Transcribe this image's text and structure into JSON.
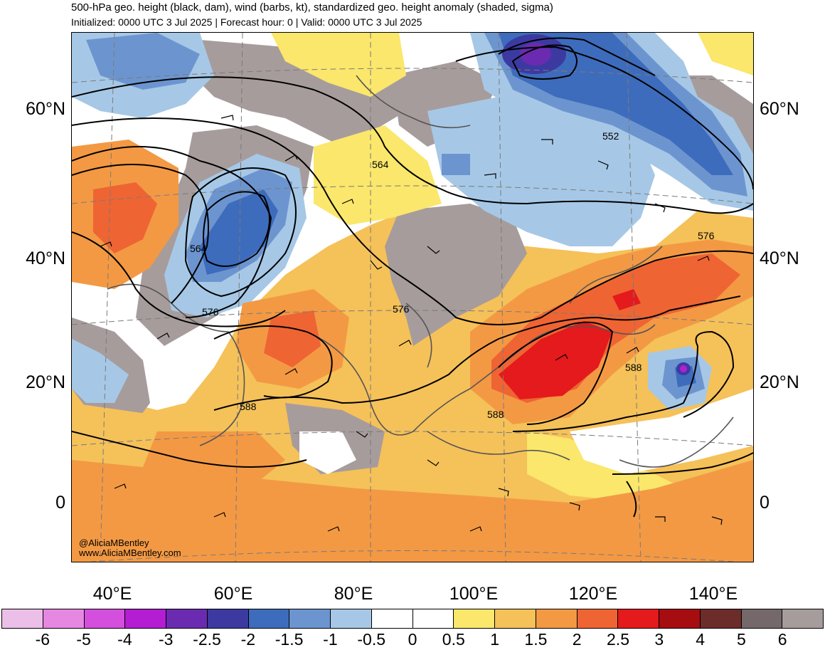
{
  "header": {
    "title": "500-hPa geo. height (black, dam), wind (barbs, kt), standardized geo. height anomaly (shaded, sigma)",
    "subtitle": "Initialized: 0000 UTC 3 Jul 2025 | Forecast hour: 0 | Valid: 0000 UTC 3 Jul 2025"
  },
  "axes": {
    "lat_labels": [
      "60°N",
      "40°N",
      "20°N",
      "0"
    ],
    "lon_labels": [
      "40°E",
      "60°E",
      "80°E",
      "100°E",
      "120°E",
      "140°E"
    ]
  },
  "contour_labels": [
    "552",
    "564",
    "564",
    "576",
    "576",
    "576",
    "588",
    "588",
    "588"
  ],
  "credits": {
    "handle": "@AliciaMBentley",
    "site": "www.AliciaMBentley.com"
  },
  "colorbar": {
    "labels": [
      "-6",
      "-5",
      "-4",
      "-3",
      "-2.5",
      "-2",
      "-1.5",
      "-1",
      "-0.5",
      "0",
      "0.5",
      "1",
      "1.5",
      "2",
      "2.5",
      "3",
      "4",
      "5",
      "6"
    ],
    "colors": [
      "#ecbfe8",
      "#e687e2",
      "#d54fde",
      "#b41ed2",
      "#6a2bb0",
      "#3c3aa1",
      "#3e6cbc",
      "#6c95d0",
      "#a6c8e6",
      "#ffffff",
      "#ffffff",
      "#fae76c",
      "#f5c159",
      "#f39944",
      "#ef6433",
      "#e41a1c",
      "#a60d11",
      "#6b2c2a",
      "#75686a",
      "#a79c9c"
    ]
  }
}
